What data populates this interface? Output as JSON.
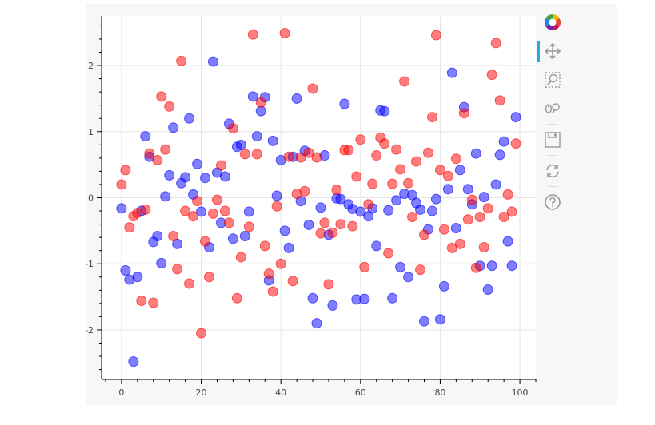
{
  "chart_data": {
    "type": "scatter",
    "title": "",
    "xlabel": "",
    "ylabel": "",
    "xlim": [
      -5,
      104
    ],
    "ylim": [
      -2.75,
      2.75
    ],
    "x_ticks": [
      0,
      20,
      40,
      60,
      80,
      100
    ],
    "y_ticks": [
      -2,
      -1,
      0,
      1,
      2
    ],
    "grid": true,
    "series": [
      {
        "color": "#0000ff",
        "points": [
          [
            0,
            -0.16
          ],
          [
            1,
            -1.1
          ],
          [
            2,
            -1.24
          ],
          [
            3,
            -2.48
          ],
          [
            4,
            -1.2
          ],
          [
            5,
            -0.2
          ],
          [
            6,
            0.93
          ],
          [
            7,
            0.62
          ],
          [
            8,
            -0.67
          ],
          [
            9,
            -0.58
          ],
          [
            10,
            -0.99
          ],
          [
            11,
            0.02
          ],
          [
            12,
            0.34
          ],
          [
            13,
            1.06
          ],
          [
            14,
            -0.7
          ],
          [
            15,
            0.22
          ],
          [
            16,
            0.31
          ],
          [
            17,
            1.2
          ],
          [
            18,
            0.05
          ],
          [
            19,
            0.51
          ],
          [
            20,
            -0.21
          ],
          [
            21,
            0.3
          ],
          [
            22,
            -0.75
          ],
          [
            23,
            2.06
          ],
          [
            24,
            0.38
          ],
          [
            25,
            -0.38
          ],
          [
            26,
            0.32
          ],
          [
            27,
            1.12
          ],
          [
            28,
            -0.62
          ],
          [
            29,
            0.77
          ],
          [
            30,
            0.8
          ],
          [
            31,
            -0.58
          ],
          [
            32,
            -0.21
          ],
          [
            33,
            1.53
          ],
          [
            34,
            0.93
          ],
          [
            35,
            1.31
          ],
          [
            36,
            1.52
          ],
          [
            37,
            -1.25
          ],
          [
            38,
            0.86
          ],
          [
            39,
            0.03
          ],
          [
            40,
            0.57
          ],
          [
            41,
            -0.5
          ],
          [
            42,
            -0.76
          ],
          [
            43,
            0.62
          ],
          [
            44,
            1.5
          ],
          [
            45,
            -0.05
          ],
          [
            46,
            0.71
          ],
          [
            47,
            -0.41
          ],
          [
            48,
            -1.52
          ],
          [
            49,
            -1.9
          ],
          [
            50,
            -0.15
          ],
          [
            51,
            0.64
          ],
          [
            52,
            -0.56
          ],
          [
            53,
            -1.63
          ],
          [
            54,
            -0.01
          ],
          [
            55,
            -0.02
          ],
          [
            56,
            1.42
          ],
          [
            57,
            -0.1
          ],
          [
            58,
            -0.17
          ],
          [
            59,
            -1.54
          ],
          [
            60,
            -0.21
          ],
          [
            61,
            -1.53
          ],
          [
            62,
            -0.28
          ],
          [
            63,
            -0.16
          ],
          [
            64,
            -0.73
          ],
          [
            65,
            1.32
          ],
          [
            66,
            1.31
          ],
          [
            67,
            -0.19
          ],
          [
            68,
            -1.52
          ],
          [
            69,
            -0.04
          ],
          [
            70,
            -1.05
          ],
          [
            71,
            0.06
          ],
          [
            72,
            -1.2
          ],
          [
            73,
            0.04
          ],
          [
            74,
            -0.08
          ],
          [
            75,
            -0.18
          ],
          [
            76,
            -1.87
          ],
          [
            77,
            -0.48
          ],
          [
            78,
            -0.2
          ],
          [
            79,
            -0.02
          ],
          [
            80,
            -1.84
          ],
          [
            81,
            -1.34
          ],
          [
            82,
            0.13
          ],
          [
            83,
            1.89
          ],
          [
            84,
            -0.46
          ],
          [
            85,
            0.42
          ],
          [
            86,
            1.37
          ],
          [
            87,
            0.13
          ],
          [
            88,
            -0.1
          ],
          [
            89,
            0.67
          ],
          [
            90,
            -1.03
          ],
          [
            91,
            0.01
          ],
          [
            92,
            -1.39
          ],
          [
            93,
            -1.03
          ],
          [
            94,
            0.2
          ],
          [
            95,
            0.65
          ],
          [
            96,
            0.85
          ],
          [
            97,
            -0.66
          ],
          [
            98,
            -1.03
          ],
          [
            99,
            1.22
          ]
        ]
      },
      {
        "color": "#ff0000",
        "points": [
          [
            0,
            0.2
          ],
          [
            1,
            0.42
          ],
          [
            2,
            -0.45
          ],
          [
            3,
            -0.28
          ],
          [
            4,
            -0.23
          ],
          [
            5,
            -1.56
          ],
          [
            6,
            -0.18
          ],
          [
            7,
            0.67
          ],
          [
            8,
            -1.59
          ],
          [
            9,
            0.57
          ],
          [
            10,
            1.53
          ],
          [
            11,
            0.73
          ],
          [
            12,
            1.38
          ],
          [
            13,
            -0.58
          ],
          [
            14,
            -1.08
          ],
          [
            15,
            2.07
          ],
          [
            16,
            -0.2
          ],
          [
            17,
            -1.3
          ],
          [
            18,
            -0.28
          ],
          [
            19,
            -0.05
          ],
          [
            20,
            -2.05
          ],
          [
            21,
            -0.66
          ],
          [
            22,
            -1.2
          ],
          [
            23,
            -0.24
          ],
          [
            24,
            -0.03
          ],
          [
            25,
            0.49
          ],
          [
            26,
            -0.2
          ],
          [
            27,
            -0.38
          ],
          [
            28,
            1.05
          ],
          [
            29,
            -1.52
          ],
          [
            30,
            -0.9
          ],
          [
            31,
            0.66
          ],
          [
            32,
            -0.44
          ],
          [
            33,
            2.47
          ],
          [
            34,
            0.66
          ],
          [
            35,
            1.44
          ],
          [
            36,
            -0.73
          ],
          [
            37,
            -1.15
          ],
          [
            38,
            -1.42
          ],
          [
            39,
            -0.13
          ],
          [
            40,
            -1.0
          ],
          [
            41,
            2.49
          ],
          [
            42,
            0.62
          ],
          [
            43,
            -1.26
          ],
          [
            44,
            0.06
          ],
          [
            45,
            0.61
          ],
          [
            46,
            0.1
          ],
          [
            47,
            0.68
          ],
          [
            48,
            1.65
          ],
          [
            49,
            0.61
          ],
          [
            50,
            -0.54
          ],
          [
            51,
            -0.38
          ],
          [
            52,
            -1.31
          ],
          [
            53,
            -0.53
          ],
          [
            54,
            0.12
          ],
          [
            55,
            -0.4
          ],
          [
            56,
            0.72
          ],
          [
            57,
            0.72
          ],
          [
            58,
            -0.43
          ],
          [
            59,
            0.32
          ],
          [
            60,
            0.88
          ],
          [
            61,
            -1.05
          ],
          [
            62,
            -0.1
          ],
          [
            63,
            0.21
          ],
          [
            64,
            0.64
          ],
          [
            65,
            0.91
          ],
          [
            66,
            0.82
          ],
          [
            67,
            -0.84
          ],
          [
            68,
            0.21
          ],
          [
            69,
            0.73
          ],
          [
            70,
            0.43
          ],
          [
            71,
            1.76
          ],
          [
            72,
            0.22
          ],
          [
            73,
            -0.29
          ],
          [
            74,
            0.55
          ],
          [
            75,
            -1.09
          ],
          [
            76,
            -0.56
          ],
          [
            77,
            0.68
          ],
          [
            78,
            1.22
          ],
          [
            79,
            2.46
          ],
          [
            80,
            0.42
          ],
          [
            81,
            -0.48
          ],
          [
            82,
            0.33
          ],
          [
            83,
            -0.76
          ],
          [
            84,
            0.59
          ],
          [
            85,
            -0.7
          ],
          [
            86,
            1.28
          ],
          [
            87,
            -0.33
          ],
          [
            88,
            -0.03
          ],
          [
            89,
            -1.06
          ],
          [
            90,
            -0.29
          ],
          [
            91,
            -0.75
          ],
          [
            92,
            -0.16
          ],
          [
            93,
            1.86
          ],
          [
            94,
            2.34
          ],
          [
            95,
            1.47
          ],
          [
            96,
            -0.29
          ],
          [
            97,
            0.05
          ],
          [
            98,
            -0.21
          ],
          [
            99,
            0.82
          ]
        ]
      }
    ]
  },
  "toolbar": {
    "tools": [
      {
        "name": "bokeh-logo-icon",
        "interactable": true
      },
      {
        "name": "pan-icon",
        "interactable": true,
        "active": true
      },
      {
        "name": "box-zoom-icon",
        "interactable": true
      },
      {
        "name": "wheel-zoom-icon",
        "interactable": true
      },
      {
        "name": "save-icon",
        "interactable": true
      },
      {
        "name": "reset-icon",
        "interactable": true
      },
      {
        "name": "help-icon",
        "interactable": true
      }
    ]
  }
}
